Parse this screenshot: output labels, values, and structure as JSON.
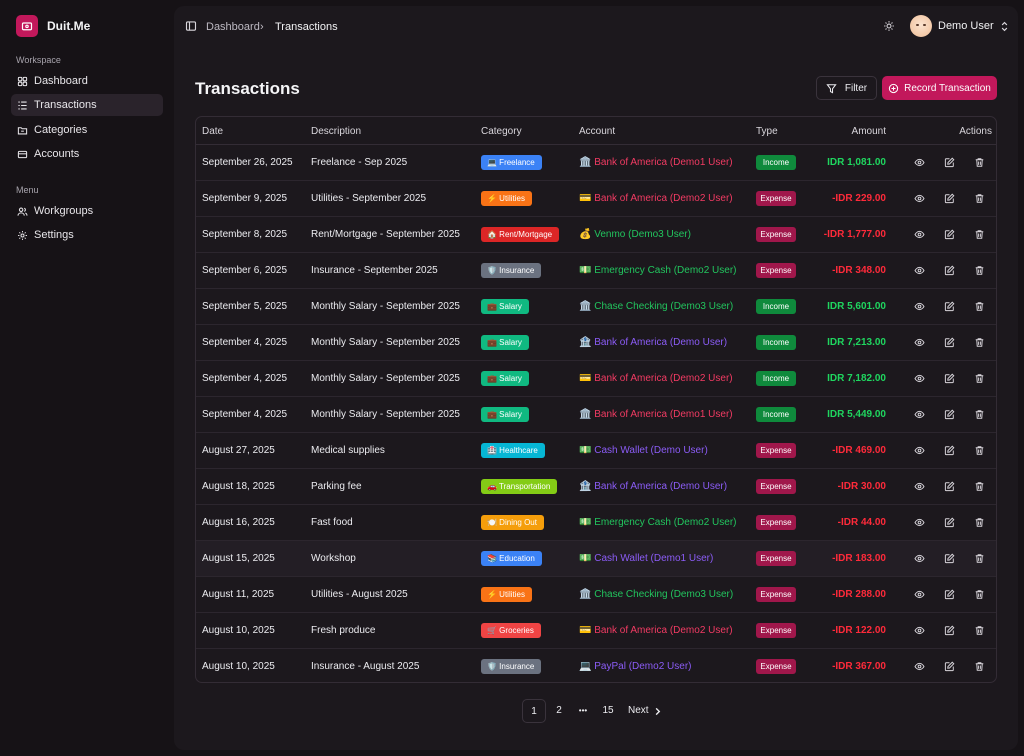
{
  "app": {
    "name": "Duit.Me"
  },
  "sidebar": {
    "workspace_label": "Workspace",
    "menu_label": "Menu",
    "workspace_items": [
      {
        "label": "Dashboard",
        "icon": "grid-icon"
      },
      {
        "label": "Transactions",
        "icon": "list-icon",
        "active": true
      },
      {
        "label": "Categories",
        "icon": "folder-icon"
      },
      {
        "label": "Accounts",
        "icon": "wallet-icon"
      }
    ],
    "menu_items": [
      {
        "label": "Workgroups",
        "icon": "users-icon"
      },
      {
        "label": "Settings",
        "icon": "gear-icon"
      }
    ]
  },
  "header": {
    "breadcrumb": [
      "Dashboard",
      "Transactions"
    ],
    "breadcrumb_sep": "›",
    "user_name": "Demo User"
  },
  "page": {
    "title": "Transactions",
    "filter_label": "Filter",
    "record_label": "Record Transaction"
  },
  "table": {
    "columns": {
      "date": "Date",
      "description": "Description",
      "category": "Category",
      "account": "Account",
      "type": "Type",
      "amount": "Amount",
      "actions": "Actions"
    },
    "rows": [
      {
        "date": "September 26, 2025",
        "description": "Freelance - Sep 2025",
        "category": "💻 Freelance",
        "category_color": "#3b82f6",
        "account": "🏛️ Bank of America (Demo1 User)",
        "account_color": "#f23b63",
        "type": "Income",
        "amount": "IDR 1,081.00"
      },
      {
        "date": "September 9, 2025",
        "description": "Utilities - September 2025",
        "category": "⚡ Utilities",
        "category_color": "#f97316",
        "account": "💳 Bank of America (Demo2 User)",
        "account_color": "#f23b63",
        "type": "Expense",
        "amount": "-IDR 229.00"
      },
      {
        "date": "September 8, 2025",
        "description": "Rent/Mortgage - September 2025",
        "category": "🏠 Rent/Mortgage",
        "category_color": "#dc2626",
        "account": "💰 Venmo (Demo3 User)",
        "account_color": "#22c55e",
        "type": "Expense",
        "amount": "-IDR 1,777.00"
      },
      {
        "date": "September 6, 2025",
        "description": "Insurance - September 2025",
        "category": "🛡️ Insurance",
        "category_color": "#6b7280",
        "account": "💵 Emergency Cash (Demo2 User)",
        "account_color": "#22c55e",
        "type": "Expense",
        "amount": "-IDR 348.00"
      },
      {
        "date": "September 5, 2025",
        "description": "Monthly Salary - September 2025",
        "category": "💼 Salary",
        "category_color": "#10b981",
        "account": "🏛️ Chase Checking (Demo3 User)",
        "account_color": "#22c55e",
        "type": "Income",
        "amount": "IDR 5,601.00"
      },
      {
        "date": "September 4, 2025",
        "description": "Monthly Salary - September 2025",
        "category": "💼 Salary",
        "category_color": "#10b981",
        "account": "🏦 Bank of America (Demo User)",
        "account_color": "#8b5cf6",
        "type": "Income",
        "amount": "IDR 7,213.00"
      },
      {
        "date": "September 4, 2025",
        "description": "Monthly Salary - September 2025",
        "category": "💼 Salary",
        "category_color": "#10b981",
        "account": "💳 Bank of America (Demo2 User)",
        "account_color": "#f23b63",
        "type": "Income",
        "amount": "IDR 7,182.00"
      },
      {
        "date": "September 4, 2025",
        "description": "Monthly Salary - September 2025",
        "category": "💼 Salary",
        "category_color": "#10b981",
        "account": "🏛️ Bank of America (Demo1 User)",
        "account_color": "#f23b63",
        "type": "Income",
        "amount": "IDR 5,449.00"
      },
      {
        "date": "August 27, 2025",
        "description": "Medical supplies",
        "category": "🏥 Healthcare",
        "category_color": "#06b6d4",
        "account": "💵 Cash Wallet (Demo User)",
        "account_color": "#8b5cf6",
        "type": "Expense",
        "amount": "-IDR 469.00"
      },
      {
        "date": "August 18, 2025",
        "description": "Parking fee",
        "category": "🚗 Transportation",
        "category_color": "#84cc16",
        "account": "🏦 Bank of America (Demo User)",
        "account_color": "#8b5cf6",
        "type": "Expense",
        "amount": "-IDR 30.00"
      },
      {
        "date": "August 16, 2025",
        "description": "Fast food",
        "category": "🍽️ Dining Out",
        "category_color": "#f59e0b",
        "account": "💵 Emergency Cash (Demo2 User)",
        "account_color": "#22c55e",
        "type": "Expense",
        "amount": "-IDR 44.00"
      },
      {
        "date": "August 15, 2025",
        "description": "Workshop",
        "category": "📚 Education",
        "category_color": "#3b82f6",
        "account": "💵 Cash Wallet (Demo1 User)",
        "account_color": "#8b5cf6",
        "type": "Expense",
        "amount": "-IDR 183.00",
        "highlight": true
      },
      {
        "date": "August 11, 2025",
        "description": "Utilities - August 2025",
        "category": "⚡ Utilities",
        "category_color": "#f97316",
        "account": "🏛️ Chase Checking (Demo3 User)",
        "account_color": "#22c55e",
        "type": "Expense",
        "amount": "-IDR 288.00"
      },
      {
        "date": "August 10, 2025",
        "description": "Fresh produce",
        "category": "🛒 Groceries",
        "category_color": "#ef4444",
        "account": "💳 Bank of America (Demo2 User)",
        "account_color": "#f23b63",
        "type": "Expense",
        "amount": "-IDR 122.00"
      },
      {
        "date": "August 10, 2025",
        "description": "Insurance - August 2025",
        "category": "🛡️ Insurance",
        "category_color": "#6b7280",
        "account": "💻 PayPal (Demo2 User)",
        "account_color": "#8b5cf6",
        "type": "Expense",
        "amount": "-IDR 367.00"
      }
    ]
  },
  "pagination": {
    "pages": [
      "1",
      "2",
      "15"
    ],
    "ellipsis": "•••",
    "next_label": "Next",
    "current": "1"
  },
  "colors": {
    "accent": "#c2185b",
    "income_badge": "#0f8a3c",
    "expense_badge": "#a0174b",
    "income_amount": "#1fd65f",
    "expense_amount": "#ff2a3a"
  }
}
